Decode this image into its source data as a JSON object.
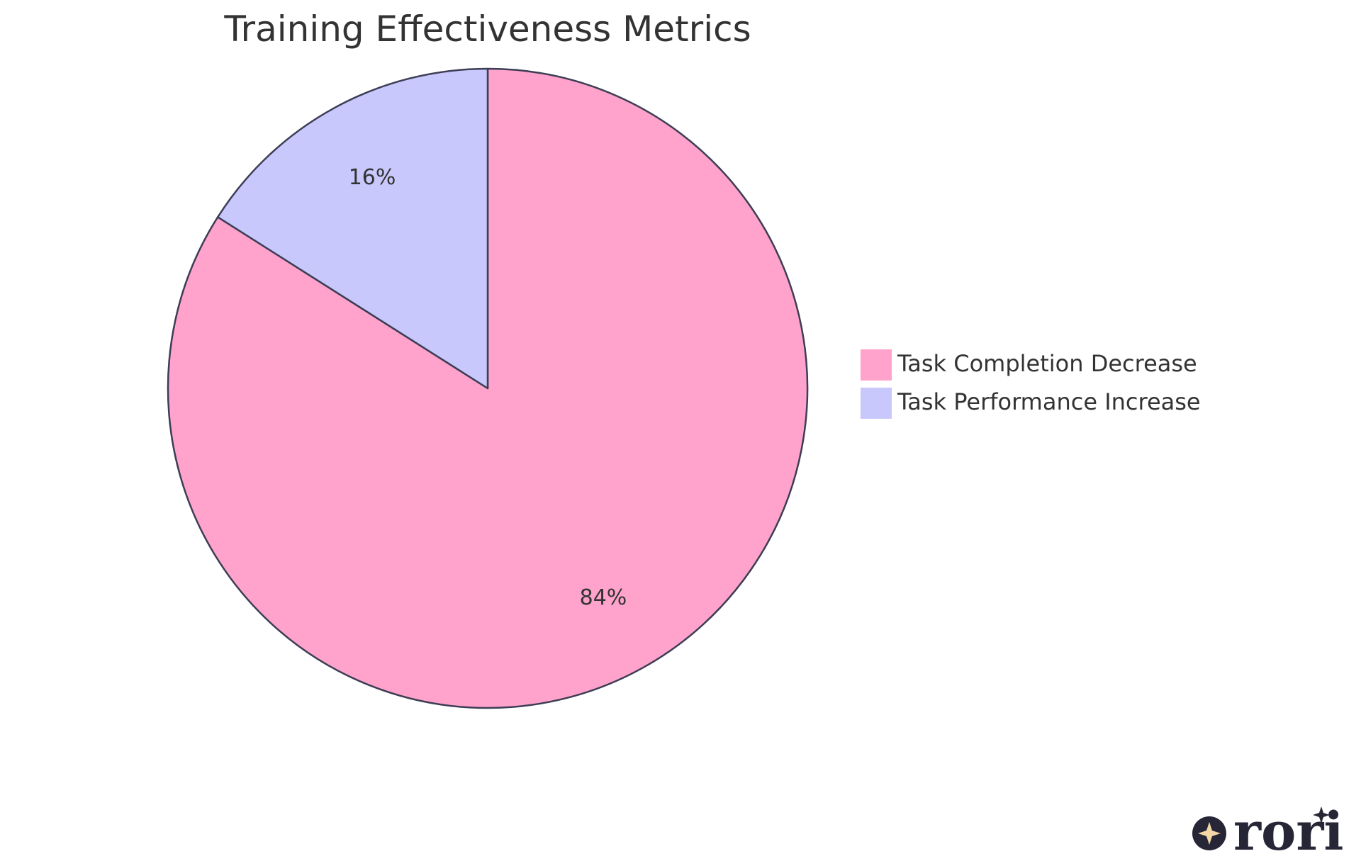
{
  "chart_data": {
    "type": "pie",
    "title": "Training Effectiveness Metrics",
    "slices": [
      {
        "label": "Task Completion Decrease",
        "value": 84,
        "display": "84%",
        "color": "#FFA3CC"
      },
      {
        "label": "Task Performance Increase",
        "value": 16,
        "display": "16%",
        "color": "#C8C8FD"
      }
    ],
    "start_angle_deg": 0,
    "direction": "clockwise",
    "legend_position": "right",
    "stroke_color": "#3D3D55"
  },
  "branding": {
    "logo_text": "rori",
    "logo_icon": "sparkle-circle-icon",
    "logo_colors": {
      "dark": "#262636",
      "accent": "#F3D7A6"
    }
  }
}
